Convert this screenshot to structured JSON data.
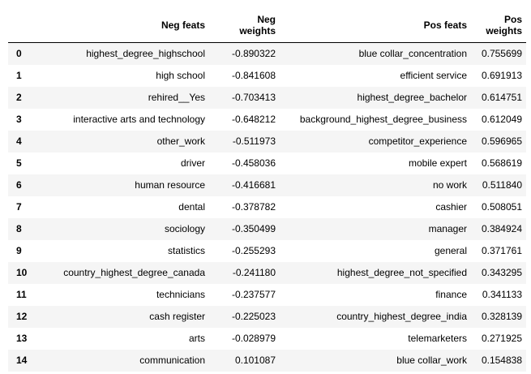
{
  "table": {
    "columns": [
      "",
      "Neg feats",
      "Neg\nweights",
      "Pos feats",
      "Pos\nweights"
    ],
    "header": {
      "index": "",
      "neg_feats": "Neg feats",
      "neg_weights_line1": "Neg",
      "neg_weights_line2": "weights",
      "pos_feats": "Pos feats",
      "pos_weights_line1": "Pos",
      "pos_weights_line2": "weights"
    },
    "rows": [
      {
        "index": "0",
        "neg_feat": "highest_degree_highschool",
        "neg_weight": "-0.890322",
        "pos_feat": "blue collar_concentration",
        "pos_weight": "0.755699"
      },
      {
        "index": "1",
        "neg_feat": "high school",
        "neg_weight": "-0.841608",
        "pos_feat": "efficient service",
        "pos_weight": "0.691913"
      },
      {
        "index": "2",
        "neg_feat": "rehired__Yes",
        "neg_weight": "-0.703413",
        "pos_feat": "highest_degree_bachelor",
        "pos_weight": "0.614751"
      },
      {
        "index": "3",
        "neg_feat": "interactive arts and technology",
        "neg_weight": "-0.648212",
        "pos_feat": "background_highest_degree_business",
        "pos_weight": "0.612049"
      },
      {
        "index": "4",
        "neg_feat": "other_work",
        "neg_weight": "-0.511973",
        "pos_feat": "competitor_experience",
        "pos_weight": "0.596965"
      },
      {
        "index": "5",
        "neg_feat": "driver",
        "neg_weight": "-0.458036",
        "pos_feat": "mobile expert",
        "pos_weight": "0.568619"
      },
      {
        "index": "6",
        "neg_feat": "human resource",
        "neg_weight": "-0.416681",
        "pos_feat": "no work",
        "pos_weight": "0.511840"
      },
      {
        "index": "7",
        "neg_feat": "dental",
        "neg_weight": "-0.378782",
        "pos_feat": "cashier",
        "pos_weight": "0.508051"
      },
      {
        "index": "8",
        "neg_feat": "sociology",
        "neg_weight": "-0.350499",
        "pos_feat": "manager",
        "pos_weight": "0.384924"
      },
      {
        "index": "9",
        "neg_feat": "statistics",
        "neg_weight": "-0.255293",
        "pos_feat": "general",
        "pos_weight": "0.371761"
      },
      {
        "index": "10",
        "neg_feat": "country_highest_degree_canada",
        "neg_weight": "-0.241180",
        "pos_feat": "highest_degree_not_specified",
        "pos_weight": "0.343295"
      },
      {
        "index": "11",
        "neg_feat": "technicians",
        "neg_weight": "-0.237577",
        "pos_feat": "finance",
        "pos_weight": "0.341133"
      },
      {
        "index": "12",
        "neg_feat": "cash register",
        "neg_weight": "-0.225023",
        "pos_feat": "country_highest_degree_india",
        "pos_weight": "0.328139"
      },
      {
        "index": "13",
        "neg_feat": "arts",
        "neg_weight": "-0.028979",
        "pos_feat": "telemarketers",
        "pos_weight": "0.271925"
      },
      {
        "index": "14",
        "neg_feat": "communication",
        "neg_weight": "0.101087",
        "pos_feat": "blue collar_work",
        "pos_weight": "0.154838"
      }
    ]
  }
}
